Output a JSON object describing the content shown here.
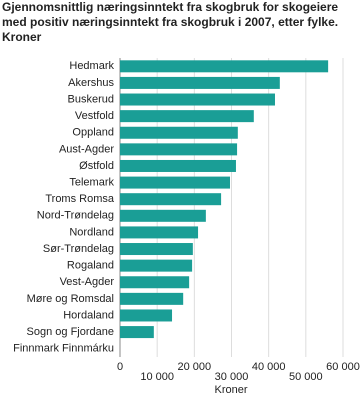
{
  "chart_data": {
    "type": "hbar",
    "title": [
      "Gjennomsnittlig næringsinntekt fra skogbruk for skogeiere",
      "med positiv næringsinntekt fra skogbruk i 2007, etter fylke.",
      "Kroner"
    ],
    "categories": [
      "Hedmark",
      "Akershus",
      "Buskerud",
      "Vestfold",
      "Oppland",
      "Aust-Agder",
      "Østfold",
      "Telemark",
      "Troms Romsa",
      "Nord-Trøndelag",
      "Nordland",
      "Sør-Trøndelag",
      "Rogaland",
      "Vest-Agder",
      "Møre og Romsdal",
      "Hordaland",
      "Sogn og Fjordane",
      "Finnmark Finnmárku"
    ],
    "values": [
      56000,
      43000,
      41700,
      36000,
      31700,
      31500,
      31200,
      29600,
      27200,
      23100,
      21000,
      19600,
      19400,
      18600,
      17000,
      14000,
      9100,
      null
    ],
    "color": "#1a9e96",
    "xlabel": "Kroner",
    "xlim": [
      0,
      60000
    ],
    "xticks": [
      0,
      {
        "value": 10000,
        "label": "10 000"
      },
      {
        "value": 20000,
        "label": "20 000"
      },
      {
        "value": 30000,
        "label": "30 000"
      },
      {
        "value": 40000,
        "label": "40 000"
      },
      {
        "value": 50000,
        "label": "50 000"
      },
      {
        "value": 60000,
        "label": "60 000"
      }
    ],
    "grid": true
  }
}
